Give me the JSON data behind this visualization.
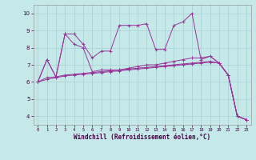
{
  "xlabel": "Windchill (Refroidissement éolien,°C)",
  "background_color": "#c5e8e8",
  "grid_color": "#a8d0d0",
  "line_color": "#993399",
  "xlim": [
    -0.5,
    23.5
  ],
  "ylim": [
    3.5,
    10.5
  ],
  "yticks": [
    4,
    5,
    6,
    7,
    8,
    9,
    10
  ],
  "xticks": [
    0,
    1,
    2,
    3,
    4,
    5,
    6,
    7,
    8,
    9,
    10,
    11,
    12,
    13,
    14,
    15,
    16,
    17,
    18,
    19,
    20,
    21,
    22,
    23
  ],
  "series": [
    {
      "x": [
        0,
        1,
        2,
        3,
        4,
        5,
        6,
        7,
        8,
        9,
        10,
        11,
        12,
        13,
        14,
        15,
        16,
        17,
        18,
        19,
        20,
        21,
        22,
        23
      ],
      "y": [
        6.0,
        7.3,
        6.3,
        8.8,
        8.8,
        8.2,
        7.4,
        7.8,
        7.8,
        9.3,
        9.3,
        9.3,
        9.4,
        7.9,
        7.9,
        9.3,
        9.5,
        10.0,
        7.3,
        7.5,
        7.1,
        6.4,
        4.0,
        3.8
      ]
    },
    {
      "x": [
        0,
        1,
        2,
        3,
        4,
        5,
        6,
        7,
        8,
        9,
        10,
        11,
        12,
        13,
        14,
        15,
        16,
        17,
        18,
        19,
        20,
        21,
        22,
        23
      ],
      "y": [
        6.0,
        7.3,
        6.3,
        8.8,
        8.2,
        8.0,
        6.6,
        6.7,
        6.7,
        6.7,
        6.8,
        6.9,
        7.0,
        7.0,
        7.1,
        7.2,
        7.3,
        7.4,
        7.4,
        7.5,
        7.1,
        6.4,
        4.0,
        3.8
      ]
    },
    {
      "x": [
        0,
        1,
        2,
        3,
        4,
        5,
        6,
        7,
        8,
        9,
        10,
        11,
        12,
        13,
        14,
        15,
        16,
        17,
        18,
        19,
        20,
        21,
        22,
        23
      ],
      "y": [
        6.0,
        6.25,
        6.3,
        6.4,
        6.45,
        6.5,
        6.55,
        6.6,
        6.65,
        6.7,
        6.75,
        6.8,
        6.85,
        6.9,
        6.95,
        7.0,
        7.05,
        7.1,
        7.15,
        7.2,
        7.1,
        6.4,
        4.0,
        3.8
      ]
    },
    {
      "x": [
        0,
        1,
        2,
        3,
        4,
        5,
        6,
        7,
        8,
        9,
        10,
        11,
        12,
        13,
        14,
        15,
        16,
        17,
        18,
        19,
        20,
        21,
        22,
        23
      ],
      "y": [
        6.0,
        6.15,
        6.25,
        6.35,
        6.4,
        6.45,
        6.5,
        6.55,
        6.6,
        6.65,
        6.7,
        6.75,
        6.8,
        6.85,
        6.9,
        6.95,
        7.0,
        7.05,
        7.1,
        7.15,
        7.1,
        6.4,
        4.0,
        3.8
      ]
    }
  ]
}
